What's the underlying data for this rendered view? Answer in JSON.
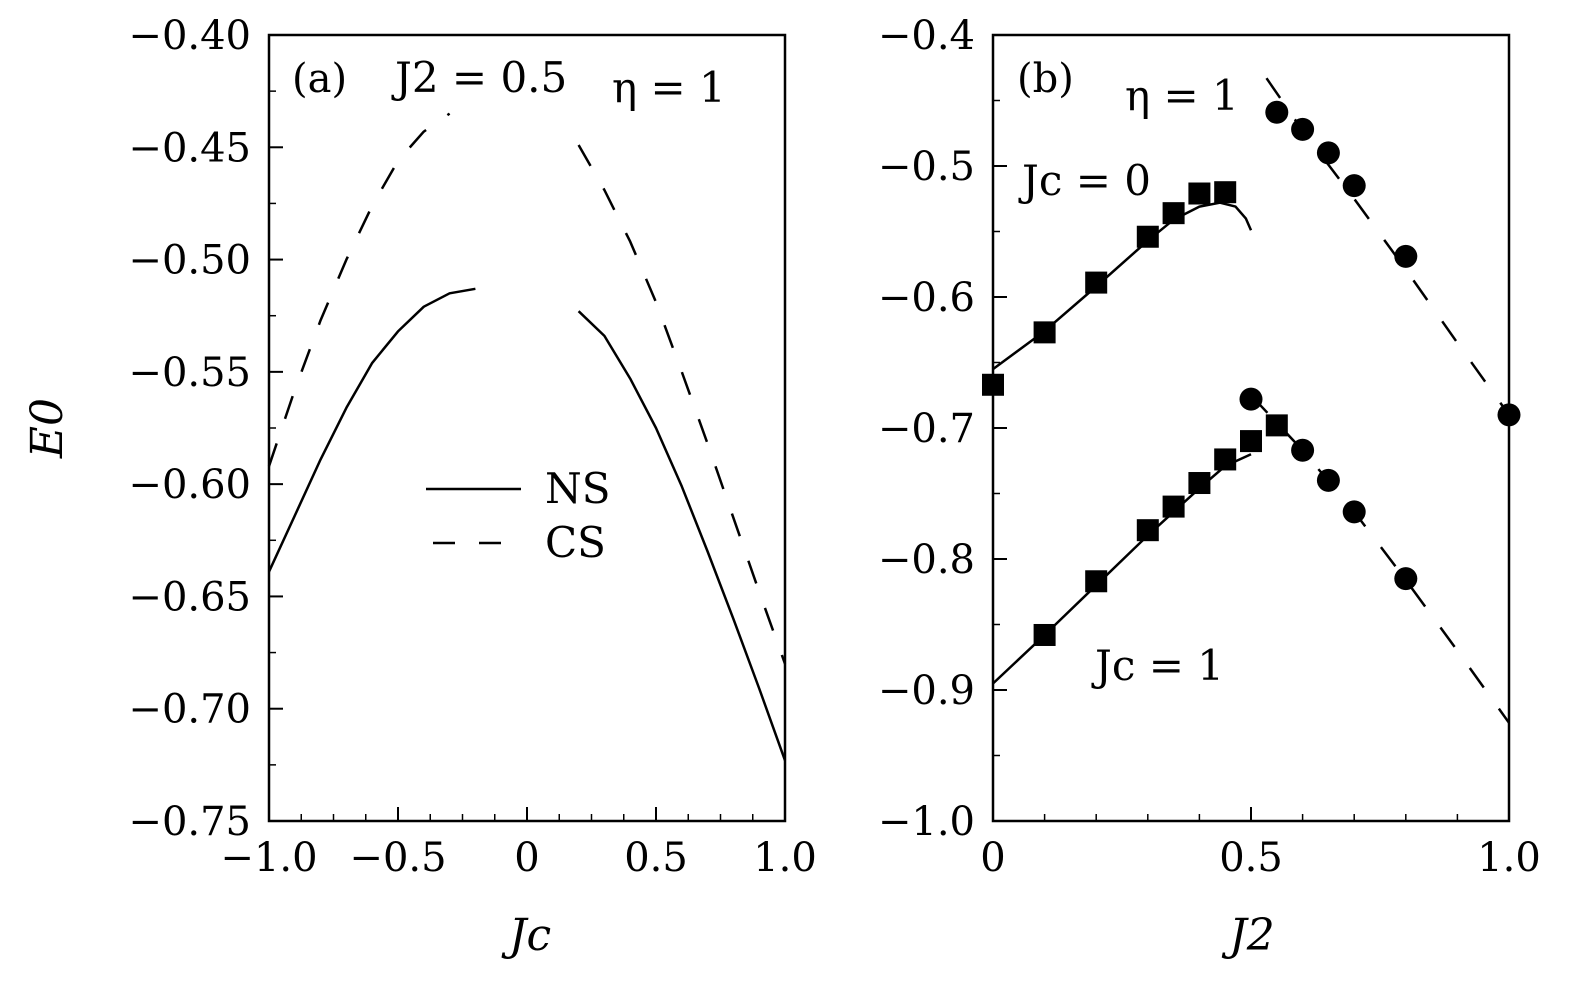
{
  "chart_data": [
    {
      "type": "line",
      "panel_label": "(a)",
      "annotations": [
        "J2 = 0.5",
        "η = 1"
      ],
      "xlabel": "Jc",
      "ylabel": "E0",
      "xlim": [
        -1.0,
        1.0
      ],
      "ylim": [
        -0.75,
        -0.4
      ],
      "x_ticks": [
        "−1.0",
        "−0.5",
        "0",
        "0.5",
        "1.0"
      ],
      "x_tick_values": [
        -1.0,
        -0.5,
        0,
        0.5,
        1.0
      ],
      "y_ticks": [
        "−0.40",
        "−0.45",
        "−0.50",
        "−0.55",
        "−0.60",
        "−0.65",
        "−0.70",
        "−0.75"
      ],
      "y_tick_values": [
        -0.4,
        -0.45,
        -0.5,
        -0.55,
        -0.6,
        -0.65,
        -0.7,
        -0.75
      ],
      "legend": {
        "placement": "center",
        "entries": [
          {
            "label": "NS",
            "style": "solid"
          },
          {
            "label": "CS",
            "style": "dashed"
          }
        ]
      },
      "series": [
        {
          "name": "NS",
          "style": "solid",
          "segments": [
            [
              [
                -1.0,
                -0.639
              ],
              [
                -0.9,
                -0.614
              ],
              [
                -0.8,
                -0.589
              ],
              [
                -0.7,
                -0.566
              ],
              [
                -0.6,
                -0.546
              ],
              [
                -0.5,
                -0.532
              ],
              [
                -0.4,
                -0.521
              ],
              [
                -0.3,
                -0.515
              ],
              [
                -0.2,
                -0.513
              ]
            ],
            [
              [
                0.2,
                -0.523
              ],
              [
                0.3,
                -0.534
              ],
              [
                0.4,
                -0.553
              ],
              [
                0.5,
                -0.575
              ],
              [
                0.6,
                -0.601
              ],
              [
                0.7,
                -0.63
              ],
              [
                0.8,
                -0.66
              ],
              [
                0.9,
                -0.691
              ],
              [
                1.0,
                -0.723
              ]
            ]
          ]
        },
        {
          "name": "CS",
          "style": "dashed",
          "segments": [
            [
              [
                -1.0,
                -0.592
              ],
              [
                -0.9,
                -0.558
              ],
              [
                -0.8,
                -0.527
              ],
              [
                -0.7,
                -0.5
              ],
              [
                -0.6,
                -0.476
              ],
              [
                -0.5,
                -0.456
              ],
              [
                -0.4,
                -0.443
              ],
              [
                -0.3,
                -0.435
              ]
            ],
            [
              [
                0.2,
                -0.449
              ],
              [
                0.3,
                -0.469
              ],
              [
                0.4,
                -0.492
              ],
              [
                0.5,
                -0.519
              ],
              [
                0.6,
                -0.55
              ],
              [
                0.7,
                -0.582
              ],
              [
                0.8,
                -0.615
              ],
              [
                0.9,
                -0.648
              ],
              [
                1.0,
                -0.68
              ]
            ]
          ]
        }
      ]
    },
    {
      "type": "line",
      "panel_label": "(b)",
      "annotations": [
        "η = 1",
        "Jc = 0",
        "Jc = 1"
      ],
      "xlabel": "J2",
      "ylabel": "",
      "xlim": [
        0,
        1.0
      ],
      "ylim": [
        -1.0,
        -0.4
      ],
      "x_ticks": [
        "0",
        "0.5",
        "1.0"
      ],
      "x_tick_values": [
        0,
        0.5,
        1.0
      ],
      "y_ticks": [
        "−0.4",
        "−0.5",
        "−0.6",
        "−0.7",
        "−0.8",
        "−0.9",
        "−1.0"
      ],
      "y_tick_values": [
        -0.4,
        -0.5,
        -0.6,
        -0.7,
        -0.8,
        -0.9,
        -1.0
      ],
      "series": [
        {
          "style": "solid",
          "points": [
            [
              0,
              -0.655
            ],
            [
              0.1,
              -0.626
            ],
            [
              0.2,
              -0.592
            ],
            [
              0.3,
              -0.557
            ],
            [
              0.35,
              -0.541
            ],
            [
              0.4,
              -0.531
            ],
            [
              0.44,
              -0.528
            ],
            [
              0.47,
              -0.531
            ],
            [
              0.49,
              -0.54
            ],
            [
              0.5,
              -0.549
            ]
          ]
        },
        {
          "style": "markers",
          "marker": "square",
          "points": [
            [
              0.0,
              -0.667
            ],
            [
              0.1,
              -0.627
            ],
            [
              0.2,
              -0.589
            ],
            [
              0.3,
              -0.554
            ],
            [
              0.35,
              -0.536
            ],
            [
              0.4,
              -0.521
            ],
            [
              0.45,
              -0.52
            ]
          ]
        },
        {
          "style": "dashed",
          "points": [
            [
              0.53,
              -0.433
            ],
            [
              0.6,
              -0.473
            ],
            [
              0.7,
              -0.525
            ],
            [
              0.8,
              -0.579
            ],
            [
              0.9,
              -0.635
            ],
            [
              1.0,
              -0.69
            ]
          ]
        },
        {
          "style": "markers",
          "marker": "circle",
          "points": [
            [
              0.55,
              -0.459
            ],
            [
              0.6,
              -0.472
            ],
            [
              0.65,
              -0.49
            ],
            [
              0.7,
              -0.515
            ],
            [
              0.8,
              -0.569
            ],
            [
              1.0,
              -0.69
            ]
          ]
        },
        {
          "style": "solid",
          "points": [
            [
              0,
              -0.895
            ],
            [
              0.1,
              -0.858
            ],
            [
              0.2,
              -0.82
            ],
            [
              0.3,
              -0.782
            ],
            [
              0.4,
              -0.746
            ],
            [
              0.45,
              -0.729
            ],
            [
              0.5,
              -0.72
            ]
          ]
        },
        {
          "style": "markers",
          "marker": "square",
          "points": [
            [
              0.1,
              -0.858
            ],
            [
              0.2,
              -0.817
            ],
            [
              0.3,
              -0.778
            ],
            [
              0.35,
              -0.76
            ],
            [
              0.4,
              -0.742
            ],
            [
              0.45,
              -0.724
            ],
            [
              0.5,
              -0.71
            ],
            [
              0.55,
              -0.698
            ]
          ]
        },
        {
          "style": "dashed",
          "points": [
            [
              0.5,
              -0.675
            ],
            [
              0.6,
              -0.717
            ],
            [
              0.7,
              -0.764
            ],
            [
              0.8,
              -0.816
            ],
            [
              0.9,
              -0.87
            ],
            [
              1.0,
              -0.925
            ]
          ]
        },
        {
          "style": "markers",
          "marker": "circle",
          "points": [
            [
              0.5,
              -0.678
            ],
            [
              0.6,
              -0.717
            ],
            [
              0.65,
              -0.74
            ],
            [
              0.7,
              -0.764
            ],
            [
              0.8,
              -0.815
            ]
          ]
        }
      ]
    }
  ]
}
